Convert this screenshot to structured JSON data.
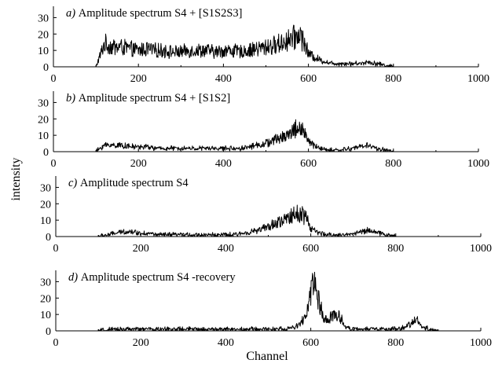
{
  "figure": {
    "ylabel": "intensity",
    "xlabel": "Channel"
  },
  "chart_data": [
    {
      "type": "line",
      "panel_letter": "a)",
      "title": "Amplitude spectrum S4 + [S1S2S3]",
      "xlim": [
        0,
        1000
      ],
      "ylim": [
        0,
        35
      ],
      "xticks": [
        0,
        200,
        400,
        600,
        800,
        1000
      ],
      "yticks": [
        0,
        10,
        20,
        30
      ],
      "x": [
        100,
        120,
        140,
        160,
        180,
        200,
        220,
        240,
        260,
        280,
        300,
        320,
        340,
        360,
        380,
        400,
        420,
        440,
        460,
        480,
        500,
        520,
        540,
        560,
        570,
        580,
        590,
        600,
        620,
        640,
        660,
        680,
        700,
        720,
        740,
        760,
        780,
        800
      ],
      "y": [
        0,
        14,
        12,
        12,
        11,
        10,
        11,
        10,
        10,
        9,
        9,
        10,
        10,
        10,
        9,
        10,
        10,
        9,
        10,
        11,
        12,
        13,
        15,
        17,
        18,
        20,
        15,
        8,
        5,
        3,
        2,
        2,
        2,
        2,
        3,
        2,
        1,
        0
      ]
    },
    {
      "type": "line",
      "panel_letter": "b)",
      "title": "Amplitude spectrum S4 + [S1S2]",
      "xlim": [
        0,
        1000
      ],
      "ylim": [
        0,
        35
      ],
      "xticks": [
        0,
        200,
        400,
        600,
        800,
        1000
      ],
      "yticks": [
        0,
        10,
        20,
        30
      ],
      "x": [
        100,
        120,
        140,
        160,
        180,
        200,
        220,
        240,
        260,
        280,
        300,
        320,
        340,
        360,
        380,
        400,
        420,
        440,
        460,
        480,
        500,
        520,
        540,
        560,
        570,
        580,
        590,
        600,
        620,
        640,
        660,
        680,
        700,
        720,
        740,
        760,
        780,
        800
      ],
      "y": [
        0,
        4,
        4,
        4,
        3,
        3,
        3,
        2,
        2,
        2,
        2,
        2,
        2,
        2,
        2,
        2,
        2,
        2,
        3,
        4,
        5,
        7,
        9,
        12,
        14,
        15,
        12,
        6,
        3,
        1,
        1,
        1,
        2,
        3,
        4,
        2,
        1,
        0
      ]
    },
    {
      "type": "line",
      "panel_letter": "c)",
      "title": "Amplitude spectrum S4",
      "xlim": [
        0,
        1000
      ],
      "ylim": [
        0,
        35
      ],
      "xticks": [
        0,
        200,
        400,
        600,
        800,
        1000
      ],
      "yticks": [
        0,
        10,
        20,
        30
      ],
      "x": [
        100,
        120,
        140,
        160,
        180,
        200,
        220,
        240,
        260,
        280,
        300,
        320,
        340,
        360,
        380,
        400,
        420,
        440,
        460,
        480,
        500,
        520,
        540,
        560,
        570,
        580,
        590,
        600,
        620,
        640,
        660,
        680,
        700,
        720,
        740,
        760,
        780,
        800
      ],
      "y": [
        0,
        1,
        2,
        3,
        3,
        2,
        2,
        1,
        1,
        1,
        1,
        1,
        1,
        1,
        1,
        1,
        1,
        2,
        3,
        4,
        6,
        8,
        10,
        13,
        14,
        15,
        11,
        5,
        2,
        1,
        1,
        1,
        2,
        3,
        4,
        2,
        1,
        0
      ]
    },
    {
      "type": "line",
      "panel_letter": "d)",
      "title": "Amplitude spectrum S4 -recovery",
      "xlim": [
        0,
        1000
      ],
      "ylim": [
        0,
        35
      ],
      "xticks": [
        0,
        200,
        400,
        600,
        800,
        1000
      ],
      "yticks": [
        0,
        10,
        20,
        30
      ],
      "x": [
        100,
        150,
        200,
        250,
        300,
        350,
        400,
        450,
        500,
        540,
        560,
        575,
        590,
        600,
        605,
        610,
        620,
        630,
        640,
        650,
        660,
        670,
        680,
        700,
        750,
        800,
        820,
        840,
        850,
        860,
        880,
        900
      ],
      "y": [
        0,
        1,
        1,
        1,
        1,
        1,
        1,
        1,
        1,
        1,
        2,
        4,
        10,
        22,
        30,
        28,
        16,
        8,
        6,
        9,
        10,
        8,
        3,
        1,
        1,
        1,
        2,
        5,
        7,
        3,
        1,
        0
      ]
    }
  ]
}
